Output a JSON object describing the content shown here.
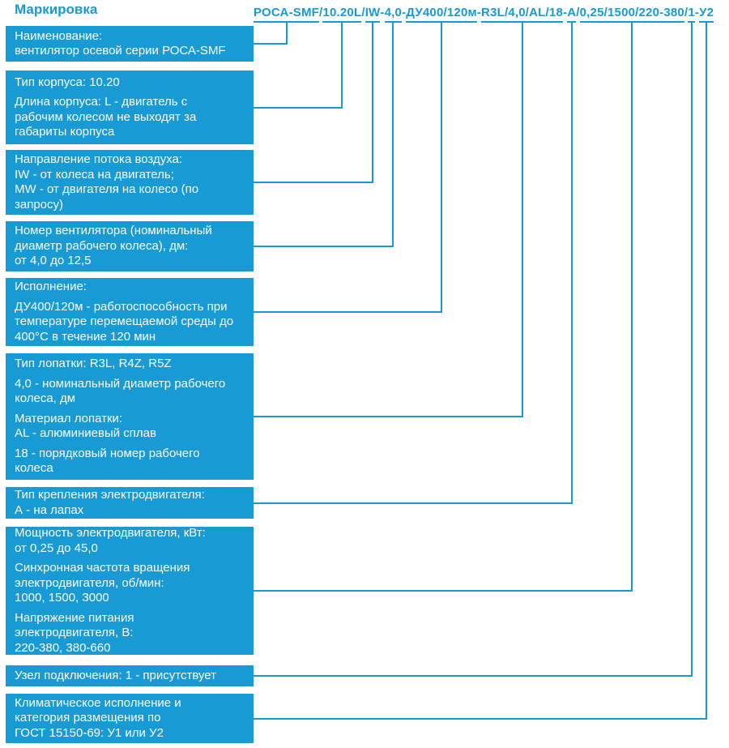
{
  "title": "Маркировка",
  "accent_color": "#189ad5",
  "code": {
    "full": "РОСА-SMF/10.20L/IW-4,0-ДУ400/120м-R3L/4,0/AL/18-А/0,25/1500/220-380/1-У2",
    "segments": [
      {
        "text": "РОСА-SMF",
        "sep": "/"
      },
      {
        "text": "10.20L",
        "sep": "/"
      },
      {
        "text": "IW",
        "sep": "-"
      },
      {
        "text": "4,0",
        "sep": "-"
      },
      {
        "text": "ДУ400/120м",
        "sep": "-"
      },
      {
        "text": "R3L/4,0/AL/18",
        "sep": "-"
      },
      {
        "text": "А",
        "sep": "/"
      },
      {
        "text": "0,25/1500/220-380",
        "sep": "/"
      },
      {
        "text": "1",
        "sep": "-"
      },
      {
        "text": "У2",
        "sep": ""
      }
    ]
  },
  "boxes": [
    {
      "key": "product-name",
      "paragraphs": [
        [
          "Наименование:",
          "вентилятор осевой серии РОСА-SMF"
        ]
      ]
    },
    {
      "key": "housing-type",
      "paragraphs": [
        [
          "Тип корпуса: 10.20"
        ],
        [
          "Длина корпуса: L - двигатель с",
          "рабочим колесом не выходят за",
          "габариты корпуса"
        ]
      ]
    },
    {
      "key": "airflow-direction",
      "paragraphs": [
        [
          "Направление потока воздуха:",
          "IW - от колеса на двигатель;",
          "MW - от двигателя на колесо (по",
          "запросу)"
        ]
      ]
    },
    {
      "key": "fan-number",
      "paragraphs": [
        [
          "Номер вентилятора (номинальный",
          "диаметр рабочего колеса), дм:",
          "от 4,0 до 12,5"
        ]
      ]
    },
    {
      "key": "execution",
      "paragraphs": [
        [
          "Исполнение:"
        ],
        [
          "ДУ400/120м - работоспособность при",
          "температуре перемещаемой среды до",
          "400°С в течение 120 мин"
        ]
      ]
    },
    {
      "key": "blade-type",
      "paragraphs": [
        [
          "Тип лопатки: R3L, R4Z, R5Z"
        ],
        [
          "4,0 - номинальный диаметр рабочего",
          "колеса, дм"
        ],
        [
          "Материал лопатки:",
          "AL - алюминиевый сплав"
        ],
        [
          "18 - порядковый номер рабочего",
          "колеса"
        ]
      ]
    },
    {
      "key": "motor-mounting-type",
      "paragraphs": [
        [
          "Тип крепления электродвигателя:",
          "А - на лапах"
        ]
      ]
    },
    {
      "key": "motor-power",
      "paragraphs": [
        [
          "Мощность электродвигателя, кВт:",
          "от 0,25 до 45,0"
        ],
        [
          "Синхронная частота вращения",
          "электродвигателя, об/мин:",
          "1000, 1500, 3000"
        ],
        [
          "Напряжение питания",
          "электродвигателя, В:",
          "220-380, 380-660"
        ]
      ]
    },
    {
      "key": "connection-unit",
      "paragraphs": [
        [
          "Узел подключения: 1 - присутствует"
        ]
      ]
    },
    {
      "key": "climatic-category",
      "paragraphs": [
        [
          "Климатическое исполнение и",
          "категория размещения по",
          "ГОСТ 15150-69: У1 или У2"
        ]
      ]
    }
  ]
}
